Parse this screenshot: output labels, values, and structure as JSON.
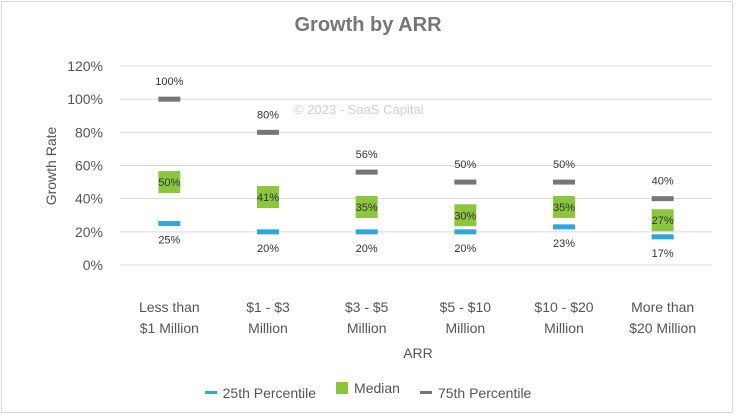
{
  "watermark": "© 2023 - SaaS Capital",
  "chart_data": {
    "type": "scatter",
    "title": "Growth by ARR",
    "xlabel": "ARR",
    "ylabel": "Growth Rate",
    "ylim": [
      0,
      120
    ],
    "yticks": [
      "0%",
      "20%",
      "40%",
      "60%",
      "80%",
      "100%",
      "120%"
    ],
    "grid": true,
    "legend_position": "bottom",
    "categories": [
      [
        "Less than",
        "$1 Million"
      ],
      [
        "$1 - $3",
        "Million"
      ],
      [
        "$3 - $5",
        "Million"
      ],
      [
        "$5 - $10",
        "Million"
      ],
      [
        "$10 - $20",
        "Million"
      ],
      [
        "More than",
        "$20 Million"
      ]
    ],
    "series": [
      {
        "name": "25th Percentile",
        "color": "#2ea8dc",
        "marker": "dash",
        "values": [
          25,
          20,
          20,
          20,
          23,
          17
        ],
        "labels": [
          "25%",
          "20%",
          "20%",
          "20%",
          "23%",
          "17%"
        ]
      },
      {
        "name": "Median",
        "color": "#8cc63e",
        "marker": "square",
        "values": [
          50,
          41,
          35,
          30,
          35,
          27
        ],
        "labels": [
          "50%",
          "41%",
          "35%",
          "30%",
          "35%",
          "27%"
        ]
      },
      {
        "name": "75th Percentile",
        "color": "#767676",
        "marker": "dash",
        "values": [
          100,
          80,
          56,
          50,
          50,
          40
        ],
        "labels": [
          "100%",
          "80%",
          "56%",
          "50%",
          "50%",
          "40%"
        ]
      }
    ]
  }
}
